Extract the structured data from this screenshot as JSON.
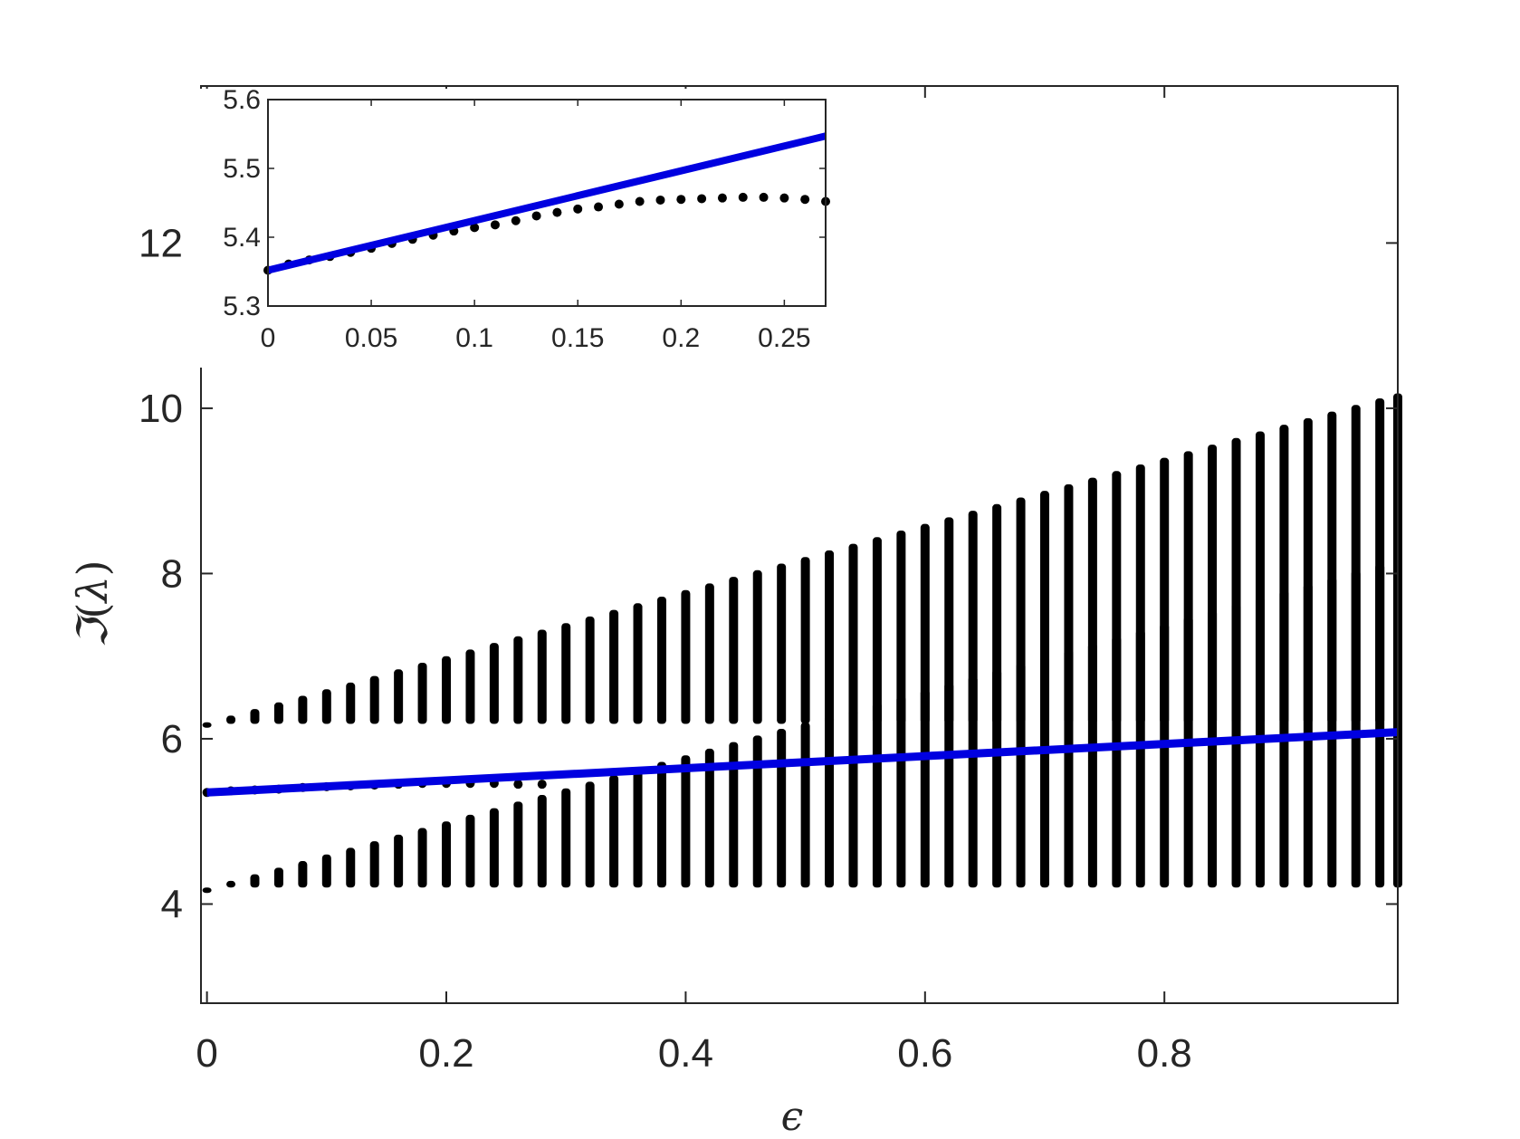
{
  "chart_data": [
    {
      "type": "scatter",
      "role": "main",
      "xlabel": "ϵ",
      "ylabel_prefix": "ℑ",
      "ylabel_paren_open": "(",
      "ylabel_symbol": "λ",
      "ylabel_paren_close": ")",
      "xlim": [
        -0.005,
        0.995
      ],
      "ylim": [
        2.8,
        13.9
      ],
      "xticks": [
        0,
        0.2,
        0.4,
        0.6,
        0.8
      ],
      "xtick_labels": [
        "0",
        "0.2",
        "0.4",
        "0.6",
        "0.8"
      ],
      "yticks": [
        4,
        6,
        8,
        10,
        12
      ],
      "ytick_labels": [
        "4",
        "6",
        "8",
        "10",
        "12"
      ],
      "grid": false,
      "legend": "none",
      "series": [
        {
          "kind": "scatter-bands",
          "color": "#000000",
          "eps": [
            0,
            0.02,
            0.04,
            0.06,
            0.08,
            0.1,
            0.12,
            0.14,
            0.16,
            0.18,
            0.2,
            0.22,
            0.24,
            0.26,
            0.28,
            0.3,
            0.32,
            0.34,
            0.36,
            0.38,
            0.4,
            0.42,
            0.44,
            0.46,
            0.48,
            0.5,
            0.52,
            0.54,
            0.56,
            0.58,
            0.6,
            0.62,
            0.64,
            0.66,
            0.68,
            0.7,
            0.72,
            0.74,
            0.76,
            0.78,
            0.8,
            0.82,
            0.84,
            0.86,
            0.88,
            0.9,
            0.92,
            0.94,
            0.96,
            0.98,
            0.995
          ],
          "upper_band_min": 6.18,
          "upper_band_max_at_0": 6.2,
          "upper_band_max_at_1": 10.2,
          "lower_band_min": 4.2,
          "lower_band_max_at_0": 4.2,
          "lower_band_max_at_1": 8.2,
          "isolated_eigenvalue": [
            5.35,
            5.37,
            5.38,
            5.39,
            5.41,
            5.42,
            5.43,
            5.44,
            5.45,
            5.46,
            5.46,
            5.46,
            5.46,
            5.45,
            5.45
          ]
        },
        {
          "kind": "line",
          "color": "#0000e0",
          "x": [
            0,
            0.995
          ],
          "y": [
            5.35,
            6.08
          ]
        }
      ]
    },
    {
      "type": "scatter",
      "role": "inset",
      "xlim": [
        0,
        0.27
      ],
      "ylim": [
        5.3,
        5.6
      ],
      "xticks": [
        0,
        0.05,
        0.1,
        0.15,
        0.2,
        0.25
      ],
      "xtick_labels": [
        "0",
        "0.05",
        "0.1",
        "0.15",
        "0.2",
        "0.25"
      ],
      "yticks": [
        5.3,
        5.4,
        5.5,
        5.6
      ],
      "ytick_labels": [
        "5.3",
        "5.4",
        "5.5",
        "5.6"
      ],
      "grid": false,
      "series": [
        {
          "kind": "scatter",
          "color": "#000000",
          "x": [
            0,
            0.01,
            0.02,
            0.03,
            0.04,
            0.05,
            0.06,
            0.07,
            0.08,
            0.09,
            0.1,
            0.11,
            0.12,
            0.13,
            0.14,
            0.15,
            0.16,
            0.17,
            0.18,
            0.19,
            0.2,
            0.21,
            0.22,
            0.23,
            0.24,
            0.25,
            0.26,
            0.27
          ],
          "y": [
            5.352,
            5.361,
            5.367,
            5.372,
            5.378,
            5.384,
            5.391,
            5.397,
            5.403,
            5.409,
            5.414,
            5.418,
            5.424,
            5.431,
            5.436,
            5.441,
            5.444,
            5.448,
            5.452,
            5.454,
            5.455,
            5.456,
            5.457,
            5.458,
            5.458,
            5.457,
            5.455,
            5.452
          ]
        },
        {
          "kind": "line",
          "color": "#0000e0",
          "x": [
            0,
            0.27
          ],
          "y": [
            5.352,
            5.547
          ]
        }
      ]
    }
  ]
}
